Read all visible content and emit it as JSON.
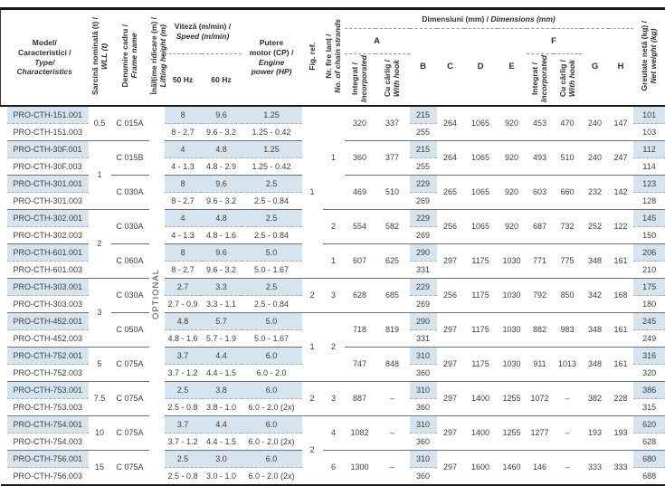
{
  "colors": {
    "row_highlight": "#d6e4f0",
    "thick_line": "#1b1b1b"
  },
  "header": {
    "model": {
      "ro1": "Model/",
      "ro2": "Caracteristici /",
      "en1": "Type/",
      "en2": "Characteristics"
    },
    "wll": {
      "ro": "Sarcină nominală (t) /",
      "en": "WLL (t)"
    },
    "frame": {
      "ro": "Denumire cadru /",
      "en": "Frame name"
    },
    "height": {
      "ro": "Înălțime ridicare (m) /",
      "en": "Lifting height (m)"
    },
    "speed": {
      "ro": "Viteză (m/min) /",
      "en": "Speed (m/min)",
      "hz50": "50 Hz",
      "hz60": "60 Hz"
    },
    "power": {
      "ro1": "Putere",
      "ro2": "motor (CP) /",
      "en1": "Engine",
      "en2": "power (HP)"
    },
    "fig": "Fig. ref.",
    "strands": {
      "ro": "Nr. fire lanț /",
      "en": "No. of chain strands"
    },
    "dims": {
      "ro": "Dimensiuni (mm) /",
      "en": "Dimensions (mm)",
      "a": "A",
      "b": "B",
      "c": "C",
      "d": "D",
      "e": "E",
      "f": "F",
      "g": "G",
      "h": "H",
      "int_ro": "Integrat /",
      "int_en": "Incorporated",
      "hook_ro": "Cu cârlig /",
      "hook_en": "With hook"
    },
    "weight": {
      "ro": "Greutate netă (kg) /",
      "en": "Net weight (kg)"
    }
  },
  "table": {
    "optional_label": "OPTIONAL",
    "wll_column": [
      {
        "label": "0.5",
        "groups": 1
      },
      {
        "label": "1",
        "groups": 2
      },
      {
        "label": "2",
        "groups": 2
      },
      {
        "label": "3",
        "groups": 2
      },
      {
        "label": "5",
        "groups": 1
      },
      {
        "label": "7.5",
        "groups": 1
      },
      {
        "label": "10",
        "groups": 1
      },
      {
        "label": "15",
        "groups": 1
      }
    ],
    "fig_column": [
      {
        "label": "1",
        "groups": 5
      },
      {
        "label": "2",
        "groups": 1
      },
      {
        "label": "1",
        "groups": 2
      },
      {
        "label": "2",
        "groups": 1
      },
      {
        "label": "2",
        "groups": 2
      }
    ],
    "strands_column": [
      {
        "label": "1",
        "groups": 3
      },
      {
        "label": "2",
        "groups": 1
      },
      {
        "label": "1",
        "groups": 1
      },
      {
        "label": "3",
        "groups": 1
      },
      {
        "label": "2",
        "groups": 2
      },
      {
        "label": "3",
        "groups": 1
      },
      {
        "label": "4",
        "groups": 1
      },
      {
        "label": "6",
        "groups": 1
      }
    ],
    "groups": [
      {
        "models": [
          "PRO-CTH-151.001",
          "PRO-CTH-151.003"
        ],
        "frame": "C 015A",
        "s50": [
          "8",
          "8 - 2.7"
        ],
        "s60": [
          "9.6",
          "9.6 - 3.2"
        ],
        "hp": [
          "1.25",
          "1.25 - 0.42"
        ],
        "a_int": "320",
        "a_hook": "337",
        "b": [
          "215",
          "255"
        ],
        "c": "264",
        "d": "1065",
        "e": "920",
        "f_int": "453",
        "f_hook": "470",
        "g": "240",
        "h": "147",
        "w": [
          "101",
          "103"
        ]
      },
      {
        "models": [
          "PRO-CTH-30F.001",
          "PRO-CTH-30F.003"
        ],
        "frame": "C 015B",
        "s50": [
          "4",
          "4 - 1.3"
        ],
        "s60": [
          "4.8",
          "4.8 - 2.9"
        ],
        "hp": [
          "1.25",
          "1.25 - 0.42"
        ],
        "a_int": "360",
        "a_hook": "377",
        "b": [
          "215",
          "255"
        ],
        "c": "264",
        "d": "1065",
        "e": "920",
        "f_int": "493",
        "f_hook": "510",
        "g": "240",
        "h": "247",
        "w": [
          "112",
          "114"
        ]
      },
      {
        "models": [
          "PRO-CTH-301.001",
          "PRO-CTH-301.003"
        ],
        "frame": "C 030A",
        "s50": [
          "8",
          "8 - 2.7"
        ],
        "s60": [
          "9.6",
          "9.6 - 3.2"
        ],
        "hp": [
          "2.5",
          "2.5 - 0.84"
        ],
        "a_int": "469",
        "a_hook": "510",
        "b": [
          "229",
          "269"
        ],
        "c": "265",
        "d": "1065",
        "e": "920",
        "f_int": "603",
        "f_hook": "660",
        "g": "232",
        "h": "142",
        "w": [
          "123",
          "128"
        ]
      },
      {
        "models": [
          "PRO-CTH-302.001",
          "PRO-CTH-302.003"
        ],
        "frame": "C 030A",
        "s50": [
          "4",
          "4 - 1.3"
        ],
        "s60": [
          "4.8",
          "4.8 - 1.6"
        ],
        "hp": [
          "2.5",
          "2.5 - 0.84"
        ],
        "a_int": "554",
        "a_hook": "582",
        "b": [
          "229",
          "269"
        ],
        "c": "256",
        "d": "1065",
        "e": "920",
        "f_int": "687",
        "f_hook": "732",
        "g": "252",
        "h": "122",
        "w": [
          "145",
          "150"
        ]
      },
      {
        "models": [
          "PRO-CTH-601.001",
          "PRO-CTH-601.003"
        ],
        "frame": "C 060A",
        "s50": [
          "8",
          "8 - 2.7"
        ],
        "s60": [
          "9.6",
          "9.6 - 3.2"
        ],
        "hp": [
          "5.0",
          "5.0 - 1.67"
        ],
        "a_int": "607",
        "a_hook": "625",
        "b": [
          "290",
          "331"
        ],
        "c": "297",
        "d": "1175",
        "e": "1030",
        "f_int": "771",
        "f_hook": "775",
        "g": "348",
        "h": "161",
        "w": [
          "206",
          "210"
        ]
      },
      {
        "models": [
          "PRO-CTH-303.001",
          "PRO-CTH-303.003"
        ],
        "frame": "C 030A",
        "s50": [
          "2.7",
          "2.7 - 0.9"
        ],
        "s60": [
          "3.3",
          "3.3 - 1.1"
        ],
        "hp": [
          "2.5",
          "2.5 - 0.84"
        ],
        "a_int": "628",
        "a_hook": "685",
        "b": [
          "229",
          "269"
        ],
        "c": "256",
        "d": "1175",
        "e": "1030",
        "f_int": "792",
        "f_hook": "850",
        "g": "342",
        "h": "168",
        "w": [
          "175",
          "180"
        ]
      },
      {
        "models": [
          "PRO-CTH-452.001",
          "PRO-CTH-452.003"
        ],
        "frame": "C 050A",
        "s50": [
          "4.8",
          "4.8 - 1.6"
        ],
        "s60": [
          "5.7",
          "5.7 - 1.9"
        ],
        "hp": [
          "5.0",
          "5.0 - 1.67"
        ],
        "a_int": "718",
        "a_hook": "819",
        "b": [
          "290",
          "331"
        ],
        "c": "297",
        "d": "1175",
        "e": "1030",
        "f_int": "882",
        "f_hook": "983",
        "g": "348",
        "h": "161",
        "w": [
          "245",
          "249"
        ]
      },
      {
        "models": [
          "PRO-CTH-752.001",
          "PRO-CTH-752.003"
        ],
        "frame": "C 075A",
        "s50": [
          "3.7",
          "3.7 - 1.2"
        ],
        "s60": [
          "4.4",
          "4.4 - 1.5"
        ],
        "hp": [
          "6.0",
          "6.0 - 2.0"
        ],
        "a_int": "747",
        "a_hook": "848",
        "b": [
          "310",
          "360"
        ],
        "c": "297",
        "d": "1175",
        "e": "1030",
        "f_int": "911",
        "f_hook": "1013",
        "g": "348",
        "h": "161",
        "w": [
          "316",
          "320"
        ]
      },
      {
        "models": [
          "PRO-CTH-753.001",
          "PRO-CTH-753.003"
        ],
        "frame": "C 075A",
        "s50": [
          "2.5",
          "2.5 - 0.8"
        ],
        "s60": [
          "3.8",
          "3.8 - 1.0"
        ],
        "hp": [
          "6.0",
          "6.0 - 2.0 (2x)"
        ],
        "a_int": "887",
        "a_hook": "–",
        "b": [
          "310",
          "360"
        ],
        "c": "297",
        "d": "1400",
        "e": "1255",
        "f_int": "1072",
        "f_hook": "–",
        "g": "382",
        "h": "228",
        "w": [
          "386",
          "315"
        ]
      },
      {
        "models": [
          "PRO-CTH-754.001",
          "PRO-CTH-754.003"
        ],
        "frame": "C 075A",
        "s50": [
          "3.7",
          "3.7 - 1.2"
        ],
        "s60": [
          "4.4",
          "4.4 - 1.5"
        ],
        "hp": [
          "6.0",
          "6.0 - 2.0 (2x)"
        ],
        "a_int": "1082",
        "a_hook": "–",
        "b": [
          "310",
          "360"
        ],
        "c": "297",
        "d": "1400",
        "e": "1255",
        "f_int": "1277",
        "f_hook": "–",
        "g": "193",
        "h": "193",
        "w": [
          "620",
          "628"
        ]
      },
      {
        "models": [
          "PRO-CTH-756.001",
          "PRO-CTH-756.003"
        ],
        "frame": "C 075A",
        "s50": [
          "2.5",
          "2.5 - 0.8"
        ],
        "s60": [
          "3.0",
          "3.0 - 1.0"
        ],
        "hp": [
          "6.0",
          "6.0 - 2.0 (2x)"
        ],
        "a_int": "1300",
        "a_hook": "–",
        "b": [
          "310",
          "360"
        ],
        "c": "297",
        "d": "1600",
        "e": "1460",
        "f_int": "146",
        "f_hook": "–",
        "g": "333",
        "h": "333",
        "w": [
          "680",
          "688"
        ]
      }
    ]
  }
}
